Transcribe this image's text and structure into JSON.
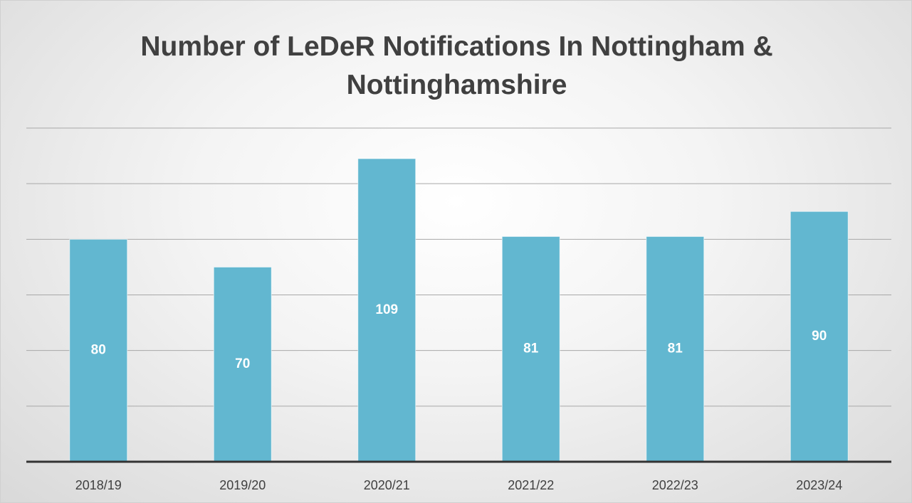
{
  "chart_data": {
    "type": "bar",
    "title": "Number of LeDeR Notifications In Nottingham & Nottinghamshire",
    "categories": [
      "2018/19",
      "2019/20",
      "2020/21",
      "2021/22",
      "2022/23",
      "2023/24"
    ],
    "values": [
      80,
      70,
      109,
      81,
      81,
      90
    ],
    "color": "#62b7d0",
    "ylim": [
      0,
      120
    ],
    "yticks": [
      0,
      20,
      40,
      60,
      80,
      100,
      120
    ],
    "grid": true
  }
}
